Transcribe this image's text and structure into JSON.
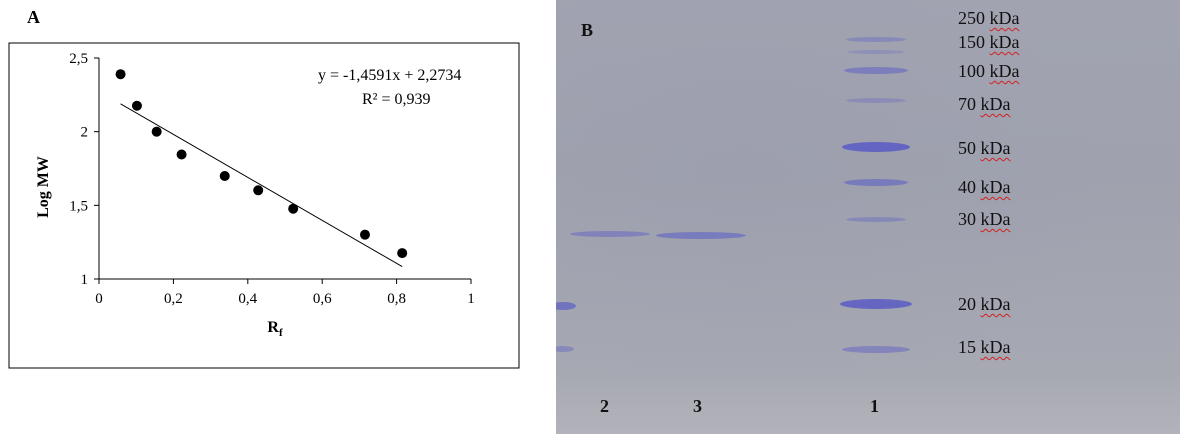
{
  "panel_a": {
    "letter": "A",
    "chart_data": {
      "type": "scatter",
      "title": "",
      "xlabel": "R",
      "xlabel_sub": "f",
      "ylabel": "Log MW",
      "xlim": [
        0,
        1
      ],
      "ylim": [
        1,
        2.5
      ],
      "xticks": [
        0,
        0.2,
        0.4,
        0.6,
        0.8,
        1
      ],
      "xtick_labels": [
        "0",
        "0,2",
        "0,4",
        "0,6",
        "0,8",
        "1"
      ],
      "yticks": [
        1,
        1.5,
        2,
        2.5
      ],
      "ytick_labels": [
        "1",
        "1,5",
        "2",
        "2,5"
      ],
      "grid": false,
      "points": [
        {
          "x": 0.058,
          "y": 2.39
        },
        {
          "x": 0.102,
          "y": 2.176
        },
        {
          "x": 0.155,
          "y": 2.0
        },
        {
          "x": 0.222,
          "y": 1.845
        },
        {
          "x": 0.338,
          "y": 1.699
        },
        {
          "x": 0.428,
          "y": 1.602
        },
        {
          "x": 0.522,
          "y": 1.477
        },
        {
          "x": 0.715,
          "y": 1.301
        },
        {
          "x": 0.815,
          "y": 1.176
        }
      ],
      "trendline": {
        "slope": -1.4591,
        "intercept": 2.2734,
        "x_from": 0.058,
        "x_to": 0.815
      },
      "equation": "y = -1,4591x  + 2,2734",
      "r2": "R² = 0,939",
      "point_color": "#000000",
      "line_color": "#000000"
    }
  },
  "panel_b": {
    "letter": "B",
    "markers": [
      {
        "label": "250",
        "unit": "kDa"
      },
      {
        "label": "150",
        "unit": "kDa"
      },
      {
        "label": "100",
        "unit": "kDa"
      },
      {
        "label": "70",
        "unit": "kDa"
      },
      {
        "label": "50",
        "unit": "kDa"
      },
      {
        "label": "40",
        "unit": "kDa"
      },
      {
        "label": "30",
        "unit": "kDa"
      },
      {
        "label": "20",
        "unit": "kDa"
      },
      {
        "label": "15",
        "unit": "kDa"
      }
    ],
    "lanes": [
      "2",
      "3",
      "1"
    ],
    "band_color": "#5a5cc6"
  }
}
